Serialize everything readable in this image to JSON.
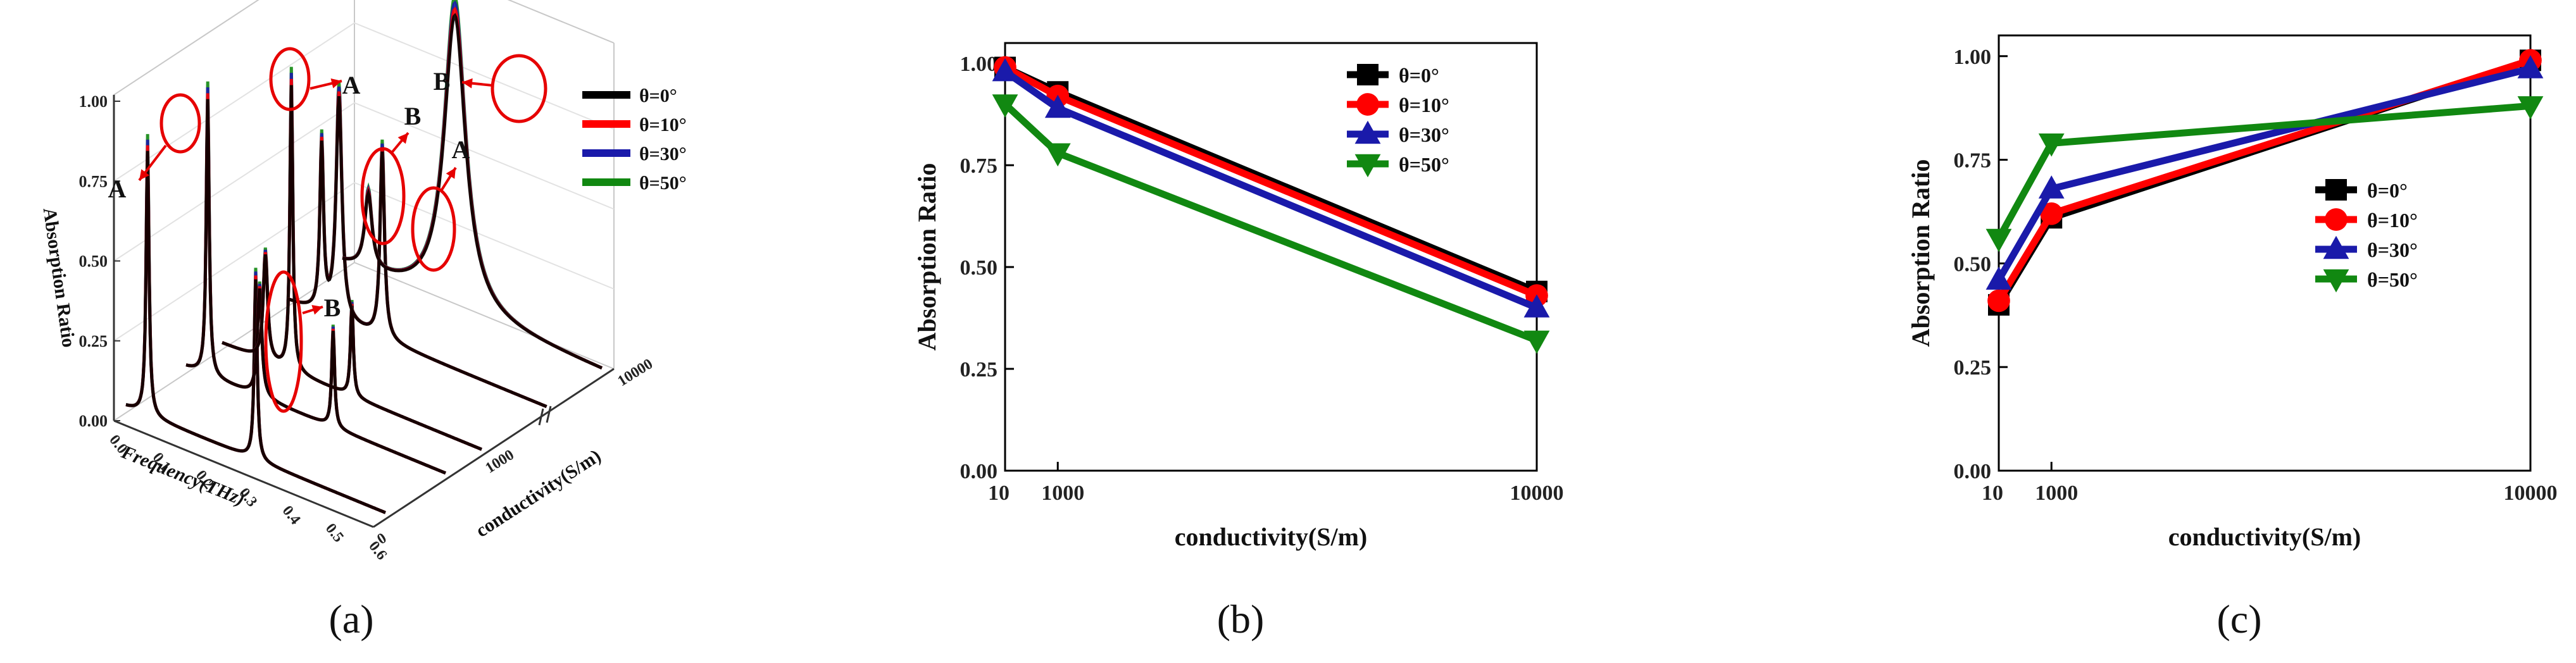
{
  "chart_data": [
    {
      "id": "a",
      "type": "line",
      "panel_label": "(a)",
      "title": "",
      "xlabel": "Frequency(THz)",
      "ylabel": "Absorption Ratio",
      "zlabel": "conductivity(S/m)",
      "x_ticks": [
        "0.0",
        "0.1",
        "0.2",
        "0.3",
        "0.4",
        "0.5",
        "0.6"
      ],
      "y_ticks": [
        "0.00",
        "0.25",
        "0.50",
        "0.75",
        "1.00"
      ],
      "z_ticks": [
        "0",
        "1000",
        "10000"
      ],
      "legend": [
        "θ=0°",
        "θ=10°",
        "θ=30°",
        "θ=50°"
      ],
      "annotations": [
        "A",
        "A",
        "B",
        "B",
        "A",
        "B"
      ],
      "series_colors": [
        "#000000",
        "#ff0000",
        "#1a1aaa",
        "#118811"
      ]
    },
    {
      "id": "b",
      "type": "line",
      "panel_label": "(b)",
      "title": "",
      "xlabel": "conductivity(S/m)",
      "ylabel": "Absorption Ratio",
      "x_ticks": [
        "10",
        "1000",
        "10000"
      ],
      "y_ticks": [
        "0.00",
        "0.25",
        "0.50",
        "0.75",
        "1.00"
      ],
      "ylim": [
        0,
        1.05
      ],
      "legend_position": "top-right",
      "series": [
        {
          "name": "θ=0°",
          "color": "#000000",
          "marker": "square",
          "x": [
            10,
            1000,
            10000
          ],
          "values": [
            0.99,
            0.93,
            0.44
          ]
        },
        {
          "name": "θ=10°",
          "color": "#ff0000",
          "marker": "circle",
          "x": [
            10,
            1000,
            10000
          ],
          "values": [
            0.99,
            0.92,
            0.43
          ]
        },
        {
          "name": "θ=30°",
          "color": "#1a1aaa",
          "marker": "triangle-up",
          "x": [
            10,
            1000,
            10000
          ],
          "values": [
            0.98,
            0.89,
            0.4
          ]
        },
        {
          "name": "θ=50°",
          "color": "#118811",
          "marker": "triangle-down",
          "x": [
            10,
            1000,
            10000
          ],
          "values": [
            0.9,
            0.78,
            0.32
          ]
        }
      ]
    },
    {
      "id": "c",
      "type": "line",
      "panel_label": "(c)",
      "title": "",
      "xlabel": "conductivity(S/m)",
      "ylabel": "Absorption Ratio",
      "x_ticks": [
        "10",
        "1000",
        "10000"
      ],
      "y_ticks": [
        "0.00",
        "0.25",
        "0.50",
        "0.75",
        "1.00"
      ],
      "ylim": [
        0,
        1.05
      ],
      "legend_position": "center-right",
      "series": [
        {
          "name": "θ=0°",
          "color": "#000000",
          "marker": "square",
          "x": [
            10,
            1000,
            10000
          ],
          "values": [
            0.4,
            0.61,
            0.99
          ]
        },
        {
          "name": "θ=10°",
          "color": "#ff0000",
          "marker": "circle",
          "x": [
            10,
            1000,
            10000
          ],
          "values": [
            0.41,
            0.62,
            0.99
          ]
        },
        {
          "name": "θ=30°",
          "color": "#1a1aaa",
          "marker": "triangle-up",
          "x": [
            10,
            1000,
            10000
          ],
          "values": [
            0.46,
            0.68,
            0.97
          ]
        },
        {
          "name": "θ=50°",
          "color": "#118811",
          "marker": "triangle-down",
          "x": [
            10,
            1000,
            10000
          ],
          "values": [
            0.56,
            0.79,
            0.88
          ]
        }
      ]
    }
  ]
}
